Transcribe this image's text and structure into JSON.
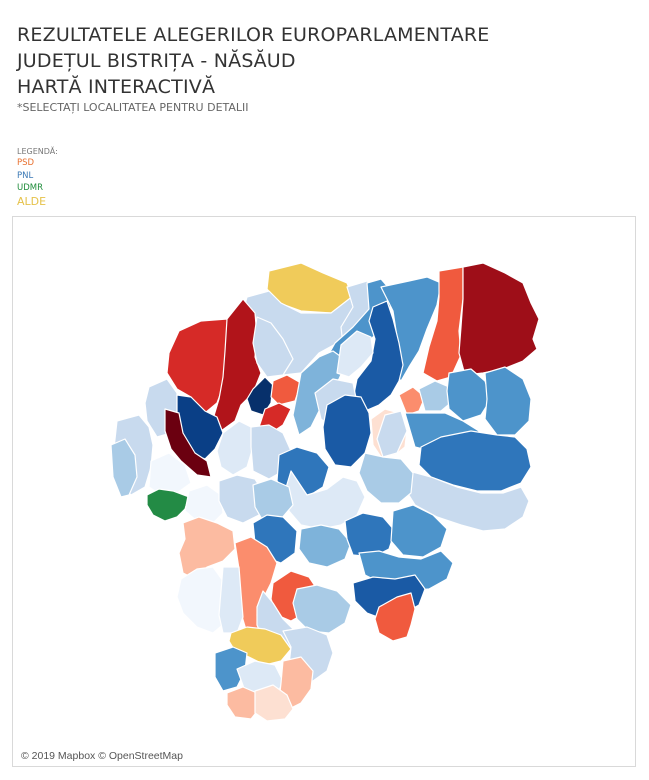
{
  "header": {
    "title_lines": [
      "REZULTATELE ALEGERILOR EUROPARLAMENTARE",
      "JUDEȚUL BISTRIȚA - NĂSĂUD",
      "HARTĂ INTERACTIVĂ"
    ],
    "subtitle": "*SELECTAȚI LOCALITATEA PENTRU DETALII"
  },
  "legend": {
    "title": "LEGENDĂ:",
    "items": [
      {
        "label": "PSD",
        "color": "#e8702f"
      },
      {
        "label": "PNL",
        "color": "#3a78b5"
      },
      {
        "label": "UDMR",
        "color": "#1e8c3a"
      },
      {
        "label": "ALDE",
        "color": "#e5c24a"
      }
    ]
  },
  "map": {
    "attribution": "© 2019 Mapbox © OpenStreetMap",
    "colors": {
      "psd_1": "#fde0d2",
      "psd_2": "#fcbba1",
      "psd_3": "#fb8d6d",
      "psd_4": "#f05a3e",
      "psd_5": "#d62a27",
      "psd_6": "#b1141a",
      "psd_7": "#9e0e18",
      "psd_8": "#6b0010",
      "pnl_1": "#f2f7fd",
      "pnl_2": "#dde9f6",
      "pnl_3": "#c8daee",
      "pnl_4": "#a9cbe6",
      "pnl_5": "#7eb3da",
      "pnl_6": "#4d94cb",
      "pnl_7": "#2f76bb",
      "pnl_8": "#1a5aa5",
      "pnl_9": "#0a3f86",
      "pnl_10": "#07306b",
      "udmr": "#238b45",
      "alde": "#f0cb5a"
    }
  }
}
